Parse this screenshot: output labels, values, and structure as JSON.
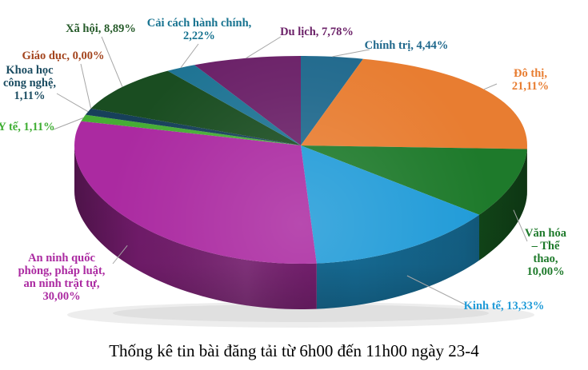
{
  "page": {
    "background": "#FFFFFF"
  },
  "chart_data": {
    "type": "pie",
    "style": "3d",
    "title": "Thống kê tin bài đăng tải từ 6h00 đến 11h00 ngày 23-4",
    "legend": "none",
    "data_labels": "category-name-and-percent",
    "decimal_separator": ",",
    "leader_line_color": "#A6A6A6",
    "start_angle_deg": 0,
    "direction": "clockwise",
    "slices": [
      {
        "name": "Chính trị",
        "pct": 4.44,
        "label_text": "Chính trị, 4,44%",
        "color": "#20698D",
        "label_color": "#1F688C"
      },
      {
        "name": "Đô thị",
        "pct": 21.11,
        "label_text": "Đô thị, 21,11%",
        "color": "#E87D31",
        "label_color": "#E87D31"
      },
      {
        "name": "Văn hóa – Thể thao",
        "pct": 10.0,
        "label_text": "Văn hóa – Thể\nthao, 10,00%",
        "color": "#1E7A2B",
        "label_color": "#1E7A2B"
      },
      {
        "name": "Kinh tế",
        "pct": 13.33,
        "label_text": "Kinh tế, 13,33%",
        "color": "#209BD8",
        "label_color": "#209BD8"
      },
      {
        "name": "An ninh quốc phòng, pháp luật, an ninh trật tự",
        "pct": 30.0,
        "label_text": "An ninh quốc\nphòng, pháp luật,\nan ninh trật tự,\n30,00%",
        "color": "#AB2AA1",
        "label_color": "#AB2AA1"
      },
      {
        "name": "Y tế",
        "pct": 1.11,
        "label_text": "Y tế, 1,11%",
        "color": "#46AD35",
        "label_color": "#3FAE33"
      },
      {
        "name": "Khoa học công nghệ",
        "pct": 1.11,
        "label_text": "Khoa học\ncông nghệ,\n1,11%",
        "color": "#17405A",
        "label_color": "#1C4D62"
      },
      {
        "name": "Giáo dục",
        "pct": 0.0,
        "label_text": "Giáo dục, 0,00%",
        "color": "#A3441D",
        "label_color": "#A3441D"
      },
      {
        "name": "Xã hội",
        "pct": 8.89,
        "label_text": "Xã hội, 8,89%",
        "color": "#1A4D21",
        "label_color": "#265B2A"
      },
      {
        "name": "Cải cách hành chính",
        "pct": 2.22,
        "label_text": "Cải cách hành chính,\n2,22%",
        "color": "#1F7494",
        "label_color": "#177390"
      },
      {
        "name": "Du lịch",
        "pct": 7.78,
        "label_text": "Du lịch, 7,78%",
        "color": "#6B2168",
        "label_color": "#6B2168"
      }
    ]
  }
}
